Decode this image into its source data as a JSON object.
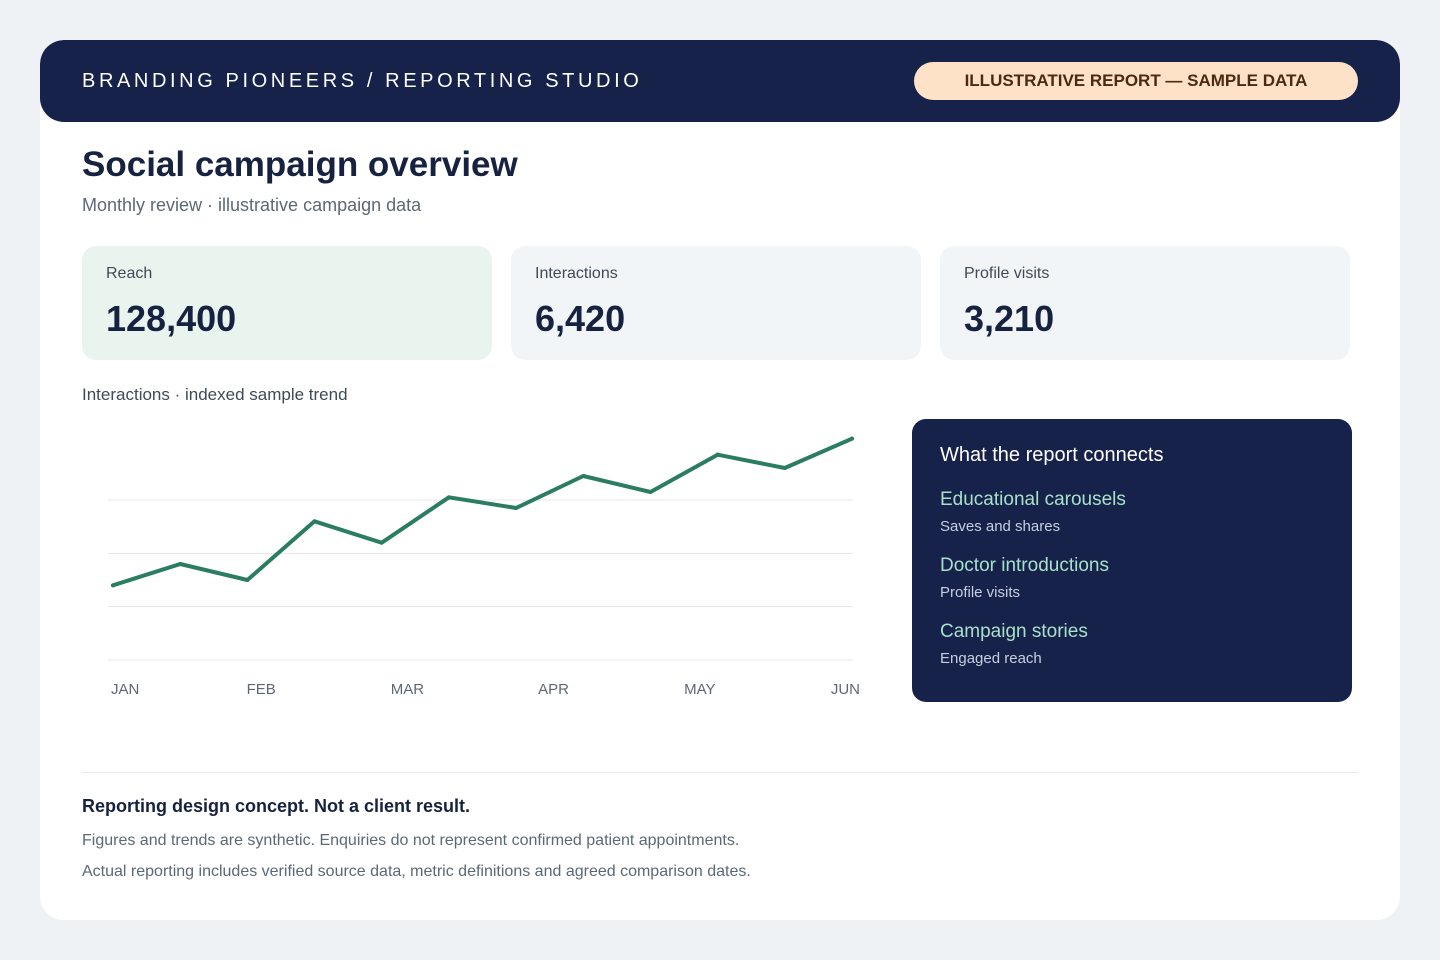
{
  "header": {
    "brand": "BRANDING PIONEERS / REPORTING STUDIO",
    "badge": "ILLUSTRATIVE REPORT — SAMPLE DATA"
  },
  "page": {
    "title": "Social campaign overview",
    "subtitle": "Monthly review · illustrative campaign data"
  },
  "kpis": [
    {
      "label": "Reach",
      "value": "128,400"
    },
    {
      "label": "Interactions",
      "value": "6,420"
    },
    {
      "label": "Profile visits",
      "value": "3,210"
    }
  ],
  "chart_title": "Interactions · indexed sample trend",
  "chart_data": {
    "type": "line",
    "title": "",
    "xlabel": "",
    "ylabel": "",
    "categories": [
      "JAN",
      "FEB",
      "MAR",
      "APR",
      "MAY",
      "JUN"
    ],
    "x": [
      0,
      0.5,
      1,
      1.5,
      2,
      2.5,
      3,
      3.5,
      4,
      4.5,
      5,
      5.5
    ],
    "values": [
      28,
      36,
      30,
      52,
      44,
      61,
      57,
      69,
      63,
      77,
      72,
      83
    ],
    "ylim": [
      0,
      90
    ],
    "gridlines": [
      0,
      20,
      40,
      60
    ],
    "grid": true,
    "legend": "none",
    "line_color": "#2a7c62",
    "grid_color": "#e3e7ea"
  },
  "panel": {
    "title": "What the report connects",
    "items": [
      {
        "title": "Educational carousels",
        "subtitle": "Saves and shares"
      },
      {
        "title": "Doctor introductions",
        "subtitle": "Profile visits"
      },
      {
        "title": "Campaign stories",
        "subtitle": "Engaged reach"
      }
    ]
  },
  "disclaimer": {
    "title": "Reporting design concept. Not a client result.",
    "lines": [
      "Figures and trends are synthetic. Enquiries do not represent confirmed patient appointments.",
      "Actual reporting includes verified source data, metric definitions and agreed comparison dates."
    ]
  },
  "colors": {
    "navy": "#16224a",
    "badge_bg": "#fde2c8",
    "accent_green": "#2a7c62",
    "panel_item": "#a8e0c9"
  }
}
